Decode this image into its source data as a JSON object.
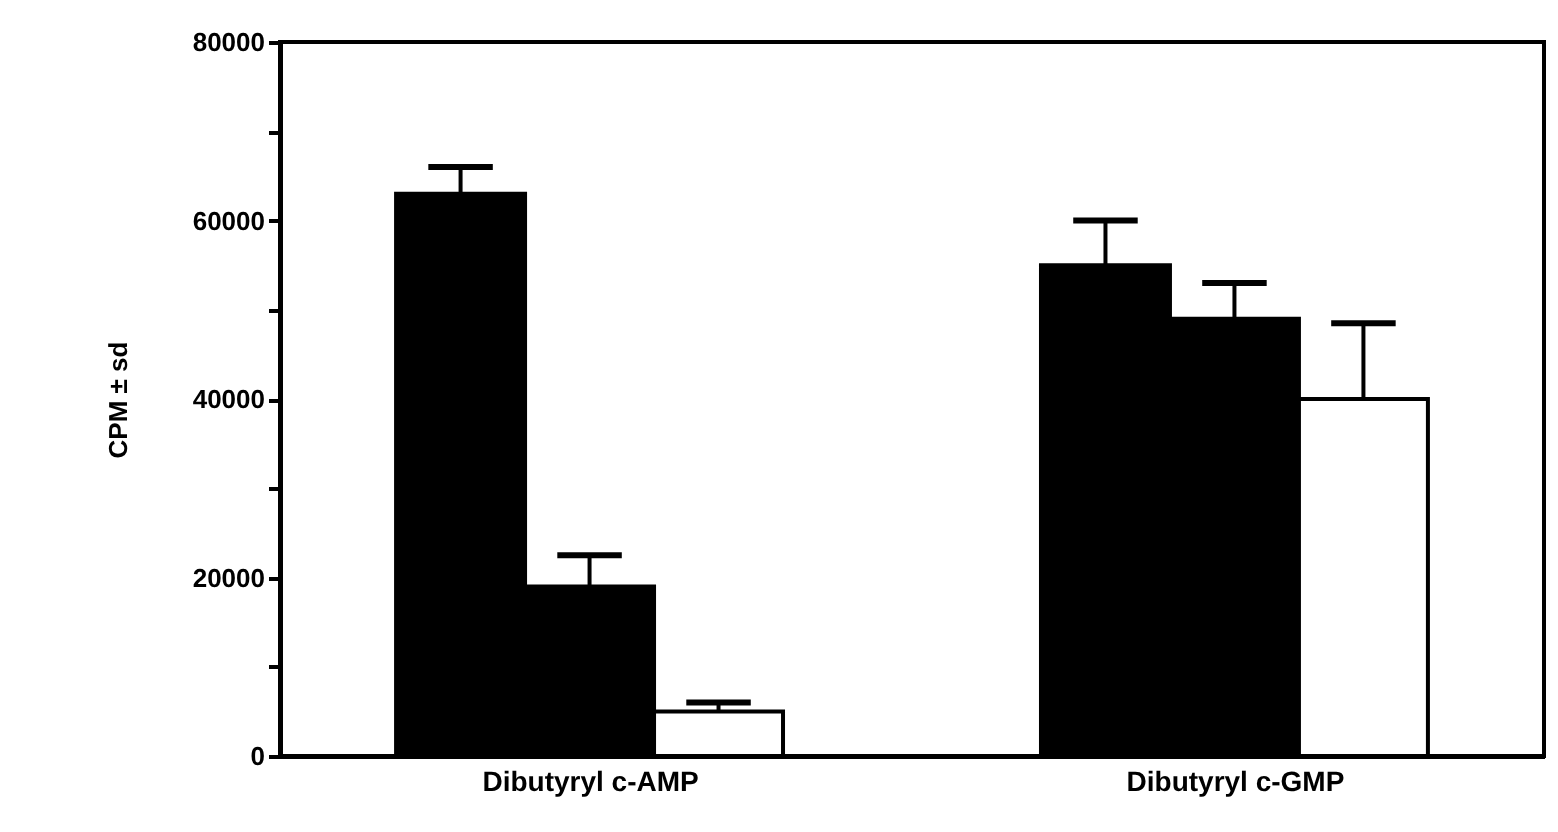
{
  "chart_data": {
    "type": "bar",
    "ylabel": "CPM ± sd",
    "categories": [
      "Dibutyryl  c-AMP",
      "Dibutyryl  c-GMP"
    ],
    "series": [
      {
        "color": "#000000",
        "values": [
          63000,
          55000
        ],
        "errors": [
          [
            63000,
            66000
          ],
          [
            55000,
            60000
          ]
        ]
      },
      {
        "color": "#000000",
        "values": [
          19000,
          49000
        ],
        "errors": [
          [
            19000,
            22500
          ],
          [
            49000,
            53000
          ]
        ]
      },
      {
        "color": "#ffffff",
        "values": [
          5000,
          40000
        ],
        "errors": [
          [
            5000,
            6000
          ],
          [
            40000,
            48500
          ]
        ]
      }
    ],
    "ylim": [
      0,
      80000
    ],
    "yticks": [
      0,
      {
        "value": 10000,
        "label": null
      },
      20000,
      {
        "value": 30000,
        "label": null
      },
      40000,
      {
        "value": 50000,
        "label": null
      },
      60000,
      {
        "value": 70000,
        "label": null
      },
      80000
    ],
    "grid": false,
    "legend": false
  }
}
